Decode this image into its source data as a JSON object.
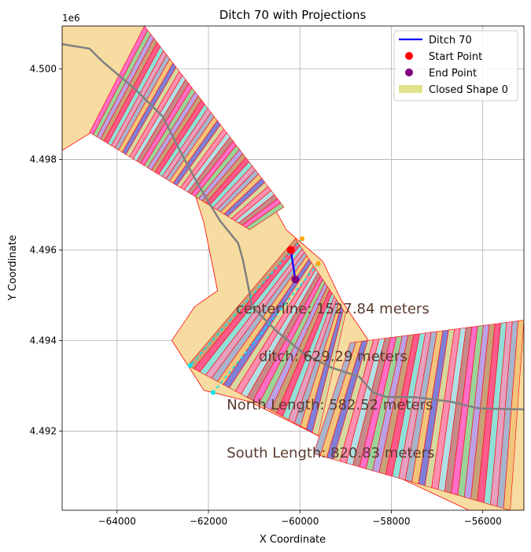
{
  "chart_data": {
    "type": "scatter",
    "title": "Ditch 70 with Projections",
    "xlabel": "X Coordinate",
    "ylabel": "Y Coordinate",
    "y_offset_label": "1e6",
    "xlim": [
      -65200,
      -55100
    ],
    "ylim": [
      4490250,
      4500950
    ],
    "x_ticks": [
      -64000,
      -62000,
      -60000,
      -58000,
      -56000
    ],
    "x_tick_labels": [
      "−64000",
      "−62000",
      "−60000",
      "−58000",
      "−56000"
    ],
    "y_ticks": [
      4492000,
      4494000,
      4496000,
      4498000,
      4500000
    ],
    "y_tick_labels": [
      "4.492",
      "4.494",
      "4.496",
      "4.498",
      "4.500"
    ],
    "grid": true,
    "legend_position": "top-right",
    "legend": [
      {
        "label": "Ditch 70",
        "kind": "line",
        "color": "#0000ff"
      },
      {
        "label": "Start Point",
        "kind": "point",
        "color": "#ff0000"
      },
      {
        "label": "End Point",
        "kind": "point",
        "color": "#800080"
      },
      {
        "label": "Closed Shape 0",
        "kind": "patch",
        "color": "#dede82"
      }
    ],
    "ditch": {
      "name": "Ditch 70",
      "x": [
        -60200,
        -60100
      ],
      "y": [
        4496000,
        4495350
      ],
      "color": "#0000ff"
    },
    "start_point": {
      "x": -60200,
      "y": 4496000,
      "color": "#ff0000"
    },
    "end_point": {
      "x": -60100,
      "y": 4495350,
      "color": "#800080"
    },
    "annotations": [
      {
        "text": "centerline: 1527.84 meters",
        "x": -61400,
        "y": 4494600
      },
      {
        "text": "ditch: 629.29 meters",
        "x": -60900,
        "y": 4493550
      },
      {
        "text": "North Length: 582.52 meters",
        "x": -61600,
        "y": 4492480
      },
      {
        "text": "South Length: 820.83 meters",
        "x": -61600,
        "y": 4491420
      }
    ],
    "projection_points": [
      {
        "x": -59950,
        "y": 4496250,
        "color": "#ffa500"
      },
      {
        "x": -59600,
        "y": 4495700,
        "color": "#ffa500"
      },
      {
        "x": -62400,
        "y": 4493450,
        "color": "#00e5ee"
      },
      {
        "x": -61900,
        "y": 4492850,
        "color": "#00e5ee"
      }
    ],
    "centerline": {
      "color": "#808080",
      "x": [
        -65200,
        -64600,
        -64300,
        -63600,
        -63000,
        -62600,
        -62200,
        -61750,
        -61350,
        -61250,
        -61100,
        -61050,
        -60500,
        -59900,
        -59300,
        -58700,
        -58400,
        -58100,
        -57500,
        -56700,
        -56100,
        -55100
      ],
      "y": [
        4500550,
        4500450,
        4500150,
        4499550,
        4498950,
        4498150,
        4497400,
        4496650,
        4496150,
        4495800,
        4495050,
        4494750,
        4494200,
        4493700,
        4493400,
        4493200,
        4492850,
        4492750,
        4492750,
        4492650,
        4492500,
        4492480
      ]
    },
    "closed_shape": {
      "label": "Closed Shape 0",
      "color": "#f6dca0",
      "x": [
        -65200,
        -64200,
        -63400,
        -62300,
        -60600,
        -60300,
        -59500,
        -59100,
        -58500,
        -57500,
        -56500,
        -55100,
        -55100,
        -56300,
        -58100,
        -59800,
        -61100,
        -62100,
        -62800,
        -62300,
        -61800,
        -62100,
        -62500,
        -63300,
        -64400,
        -65200
      ],
      "y": [
        4500950,
        4500950,
        4500950,
        4499100,
        4497000,
        4496450,
        4495750,
        4494900,
        4494000,
        4493900,
        4494150,
        4494450,
        4490250,
        4490250,
        4491100,
        4492000,
        4492650,
        4492900,
        4494000,
        4494750,
        4495100,
        4496600,
        4497900,
        4498700,
        4498700,
        4498200
      ]
    }
  }
}
